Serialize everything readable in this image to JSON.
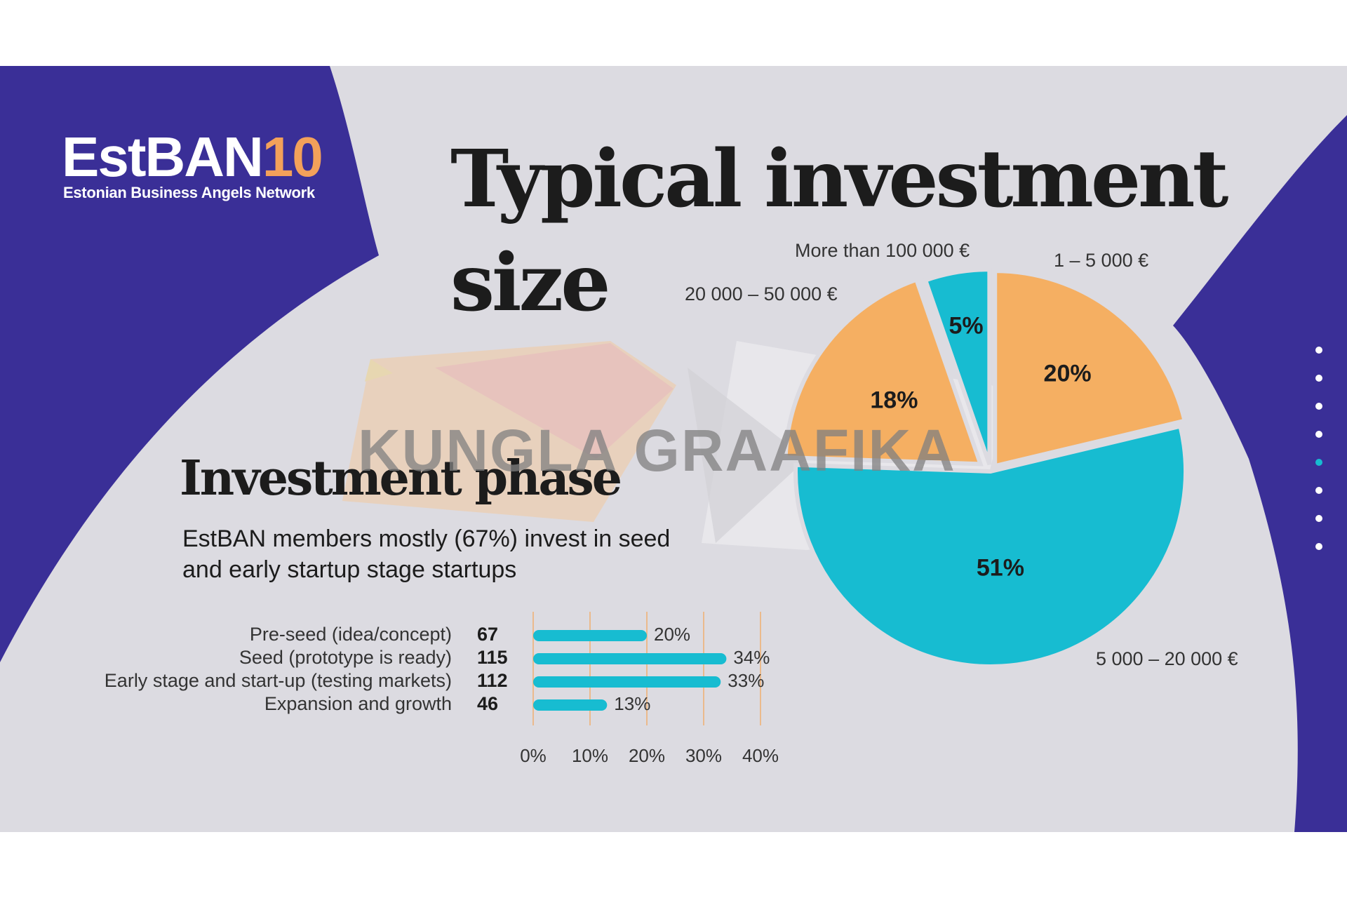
{
  "logo": {
    "name": "EstBAN",
    "number": "10",
    "subtitle": "Estonian Business Angels Network"
  },
  "title": "Typical investment size",
  "watermark": "KUNGLA GRAAFIKA",
  "colors": {
    "primary": "#3a2f97",
    "background": "#dcdbe1",
    "orange": "#f5af62",
    "teal": "#17bcd1"
  },
  "phase": {
    "title": "Investment phase",
    "subtitle": "EstBAN members mostly (67%) invest in seed and early startup stage startups"
  },
  "chart_data": [
    {
      "type": "bar",
      "orientation": "horizontal",
      "categories": [
        "Pre-seed (idea/concept)",
        "Seed (prototype is ready)",
        "Early stage and start-up (testing markets)",
        "Expansion and growth"
      ],
      "counts": [
        67,
        115,
        112,
        46
      ],
      "values": [
        20,
        34,
        33,
        13
      ],
      "value_labels": [
        "20%",
        "34%",
        "33%",
        "13%"
      ],
      "x_ticks": [
        "0%",
        "10%",
        "20%",
        "30%",
        "40%"
      ],
      "xlim": [
        0,
        40
      ],
      "grid": true
    },
    {
      "type": "pie",
      "slices": [
        {
          "label": "1 – 5 000 €",
          "value": 20,
          "pct": "20%",
          "color": "#f5af62"
        },
        {
          "label": "5 000 – 20 000 €",
          "value": 51,
          "pct": "51%",
          "color": "#17bcd1"
        },
        {
          "label": "20 000 – 50 000 €",
          "value": 18,
          "pct": "18%",
          "color": "#f5af62"
        },
        {
          "label": "More than 100 000 €",
          "value": 5,
          "pct": "5%",
          "color": "#17bcd1"
        }
      ]
    }
  ]
}
